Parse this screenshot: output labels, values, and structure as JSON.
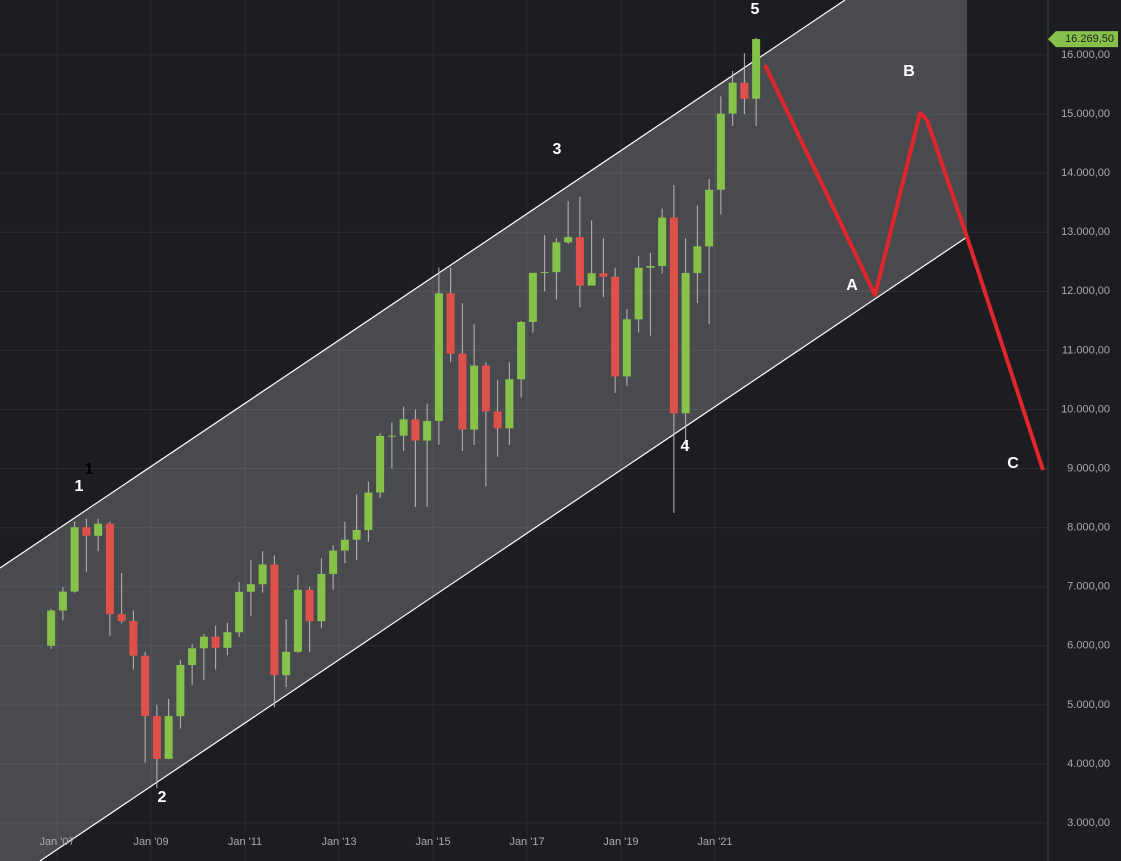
{
  "chart_data": {
    "type": "candlestick",
    "xlim": [
      2005.787,
      2028.085
    ],
    "ylim": [
      2357,
      16931
    ],
    "xticks": [
      {
        "value": 2007,
        "label": "Jan '07"
      },
      {
        "value": 2009,
        "label": "Jan '09"
      },
      {
        "value": 2011,
        "label": "Jan '11"
      },
      {
        "value": 2013,
        "label": "Jan '13"
      },
      {
        "value": 2015,
        "label": "Jan '15"
      },
      {
        "value": 2017,
        "label": "Jan '17"
      },
      {
        "value": 2019,
        "label": "Jan '19"
      },
      {
        "value": 2021,
        "label": "Jan '21"
      }
    ],
    "yticks": [
      {
        "value": 3000,
        "label": "3.000,00"
      },
      {
        "value": 4000,
        "label": "4.000,00"
      },
      {
        "value": 5000,
        "label": "5.000,00"
      },
      {
        "value": 6000,
        "label": "6.000,00"
      },
      {
        "value": 7000,
        "label": "7.000,00"
      },
      {
        "value": 8000,
        "label": "8.000,00"
      },
      {
        "value": 9000,
        "label": "9.000,00"
      },
      {
        "value": 10000,
        "label": "10.000,00"
      },
      {
        "value": 11000,
        "label": "11.000,00"
      },
      {
        "value": 12000,
        "label": "12.000,00"
      },
      {
        "value": 13000,
        "label": "13.000,00"
      },
      {
        "value": 14000,
        "label": "14.000,00"
      },
      {
        "value": 15000,
        "label": "15.000,00"
      },
      {
        "value": 16000,
        "label": "16.000,00"
      }
    ],
    "grid": true,
    "up_color": "#86c24a",
    "down_color": "#e0504a",
    "last_price": {
      "value": 16269.5,
      "label": "16.269,50"
    },
    "wave_labels": [
      "1",
      "1",
      "2",
      "3",
      "4",
      "5",
      "A",
      "B",
      "C"
    ],
    "candles": {
      "x": [
        2006.875,
        2007.125,
        2007.375,
        2007.625,
        2007.875,
        2008.125,
        2008.375,
        2008.625,
        2008.875,
        2009.125,
        2009.375,
        2009.625,
        2009.875,
        2010.125,
        2010.375,
        2010.625,
        2010.875,
        2011.125,
        2011.375,
        2011.625,
        2011.875,
        2012.125,
        2012.375,
        2012.625,
        2012.875,
        2013.125,
        2013.375,
        2013.625,
        2013.875,
        2014.125,
        2014.375,
        2014.625,
        2014.875,
        2015.125,
        2015.375,
        2015.625,
        2015.875,
        2016.125,
        2016.375,
        2016.625,
        2016.875,
        2017.125,
        2017.375,
        2017.625,
        2017.875,
        2018.125,
        2018.375,
        2018.625,
        2018.875,
        2019.125,
        2019.375,
        2019.625,
        2019.875,
        2020.125,
        2020.375,
        2020.625,
        2020.875,
        2021.125,
        2021.375,
        2021.625,
        2021.875
      ],
      "open": [
        6000,
        6597,
        6917,
        8007,
        7862,
        8067,
        6535,
        6418,
        5831,
        4810,
        4085,
        4809,
        5675,
        5957,
        6154,
        5966,
        6229,
        6914,
        7041,
        7376,
        5502,
        5898,
        6947,
        6416,
        7216,
        7612,
        7795,
        7959,
        8594,
        9552,
        9556,
        9833,
        9474,
        9806,
        11966,
        10945,
        9660,
        10743,
        9966,
        9680,
        10511,
        11481,
        12313,
        12325,
        12829,
        12918,
        12097,
        12306,
        12247,
        10559,
        11526,
        12399,
        12428,
        13249,
        9936,
        12311,
        12761,
        13719,
        15008,
        15531,
        15260
      ],
      "high": [
        6620,
        7000,
        8100,
        8150,
        8150,
        8100,
        7230,
        6600,
        5900,
        5000,
        5100,
        5760,
        6030,
        6200,
        6340,
        6390,
        7080,
        7450,
        7600,
        7530,
        6450,
        7200,
        7000,
        7480,
        7700,
        8100,
        8560,
        8780,
        9600,
        9780,
        10050,
        10000,
        10100,
        12400,
        12400,
        11800,
        11450,
        10800,
        10500,
        10800,
        11500,
        12300,
        12950,
        12900,
        13530,
        13600,
        13200,
        12900,
        12400,
        11700,
        12600,
        12650,
        13400,
        13800,
        12900,
        13450,
        13900,
        15300,
        15730,
        16030,
        16290
      ],
      "low": [
        5950,
        6430,
        6900,
        7250,
        7600,
        6170,
        6380,
        5600,
        4020,
        3590,
        4080,
        4600,
        5340,
        5420,
        5600,
        5840,
        6150,
        6500,
        6900,
        4960,
        5300,
        5880,
        5900,
        6300,
        6950,
        7400,
        7450,
        7760,
        8500,
        9000,
        9300,
        8350,
        8350,
        9400,
        10800,
        9300,
        9400,
        8700,
        9200,
        9400,
        10200,
        11300,
        12000,
        11860,
        12800,
        11730,
        12100,
        11900,
        10280,
        10400,
        11300,
        11250,
        12300,
        8250,
        9400,
        11800,
        11450,
        13300,
        14800,
        15000,
        14800
      ],
      "close": [
        6597,
        6917,
        8007,
        7862,
        8067,
        6535,
        6418,
        5831,
        4810,
        4085,
        4809,
        5675,
        5957,
        6154,
        5966,
        6229,
        6914,
        7041,
        7376,
        5502,
        5898,
        6947,
        6416,
        7216,
        7612,
        7795,
        7959,
        8594,
        9552,
        9556,
        9833,
        9474,
        9806,
        11966,
        10945,
        9660,
        10743,
        9966,
        9680,
        10511,
        11481,
        12313,
        12325,
        12829,
        12918,
        12097,
        12306,
        12247,
        10559,
        11526,
        12399,
        12428,
        13249,
        9936,
        12311,
        12761,
        13719,
        15008,
        15531,
        15260,
        16269.5
      ]
    }
  }
}
